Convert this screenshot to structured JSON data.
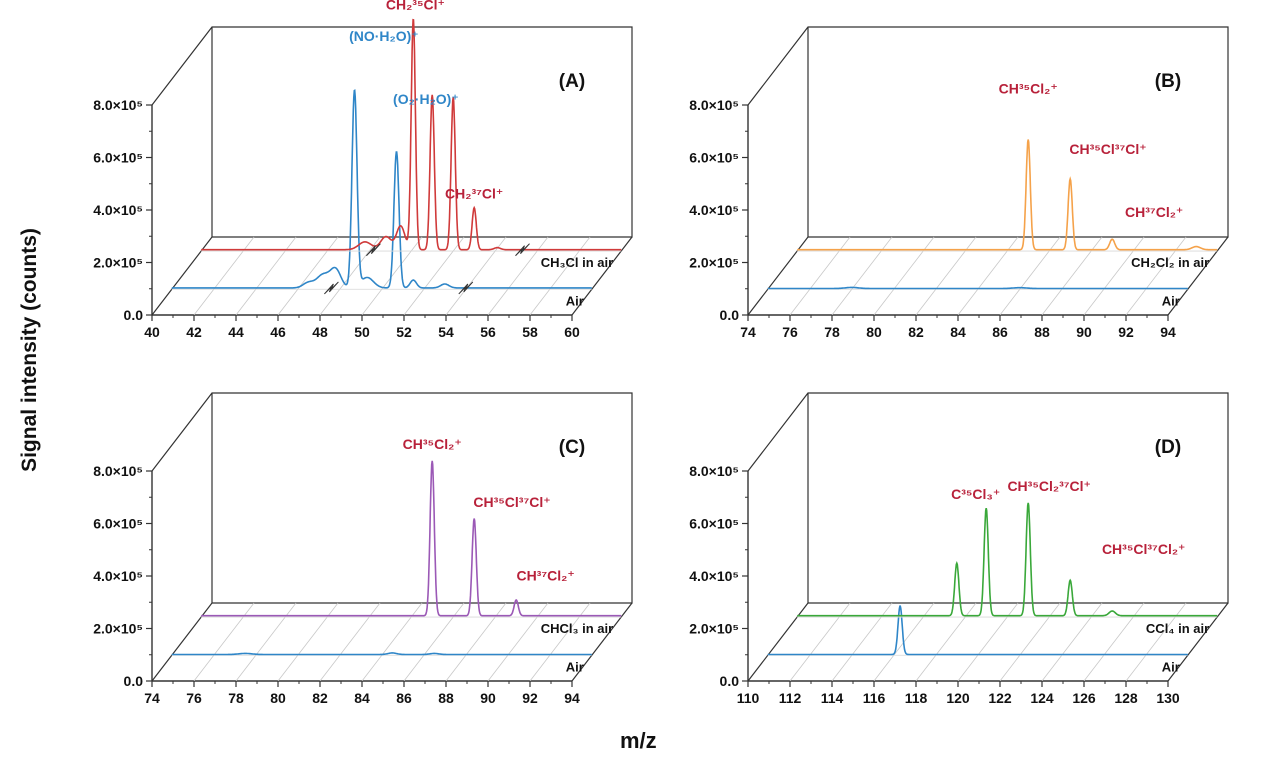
{
  "figure": {
    "y_axis_label": "Signal intensity (counts)",
    "x_axis_label": "m/z"
  },
  "chart_data": [
    {
      "type": "line",
      "panel_label": "(A)",
      "xlim": [
        40,
        60
      ],
      "x_ticks": [
        "40",
        "42",
        "44",
        "46",
        "48",
        "50",
        "52",
        "54",
        "56",
        "58",
        "60"
      ],
      "ylim": [
        0,
        800000
      ],
      "y_ticks": [
        "0.0",
        "2.0×10⁵",
        "4.0×10⁵",
        "6.0×10⁵",
        "8.0×10⁵"
      ],
      "series": [
        {
          "name": "Air",
          "color": "#2f86c8",
          "baseline": 5000,
          "peaks": [
            [
              46.5,
              20000,
              0.25
            ],
            [
              47.2,
              50000,
              0.3
            ],
            [
              47.8,
              70000,
              0.25
            ],
            [
              48.7,
              750000,
              0.12
            ],
            [
              49.3,
              40000,
              0.3
            ],
            [
              50.7,
              520000,
              0.12
            ],
            [
              51.5,
              30000,
              0.15
            ],
            [
              53.0,
              15000,
              0.2
            ]
          ],
          "cut_x": [
            47.6,
            54.0
          ]
        },
        {
          "name": "CH₃Cl in air",
          "color": "#d03a3a",
          "baseline": 5000,
          "peaks": [
            [
              47.8,
              30000,
              0.3
            ],
            [
              48.8,
              50000,
              0.25
            ],
            [
              49.5,
              90000,
              0.2
            ],
            [
              50.1,
              880000,
              0.1
            ],
            [
              51.0,
              590000,
              0.1
            ],
            [
              52.0,
              580000,
              0.1
            ],
            [
              53.0,
              160000,
              0.1
            ],
            [
              54.1,
              8000,
              0.15
            ]
          ],
          "cut_x": [
            48.2,
            55.3
          ]
        }
      ],
      "annotations": [
        {
          "text": "(NO·H₂O)⁺",
          "color": "#2f86c8",
          "x": 48.7,
          "y": 800000
        },
        {
          "text": "(O₂·H₂O)⁺",
          "color": "#2f86c8",
          "x": 50.7,
          "y": 560000
        },
        {
          "text": "CH₂³⁵Cl⁺",
          "color": "#b8213a",
          "x": 50.2,
          "y": 920000
        },
        {
          "text": "CH₂³⁷Cl⁺",
          "color": "#b8213a",
          "x": 53.0,
          "y": 200000
        }
      ]
    },
    {
      "type": "line",
      "panel_label": "(B)",
      "xlim": [
        74,
        94
      ],
      "x_ticks": [
        "74",
        "76",
        "78",
        "80",
        "82",
        "84",
        "86",
        "88",
        "90",
        "92",
        "94"
      ],
      "ylim": [
        0,
        800000
      ],
      "y_ticks": [
        "0.0",
        "2.0×10⁵",
        "4.0×10⁵",
        "6.0×10⁵",
        "8.0×10⁵"
      ],
      "series": [
        {
          "name": "Air",
          "color": "#2f86c8",
          "baseline": 3000,
          "peaks": [
            [
              78.0,
              4000,
              0.3
            ],
            [
              86.0,
              3000,
              0.3
            ]
          ]
        },
        {
          "name": "CH₂Cl₂ in air",
          "color": "#f5a24a",
          "baseline": 5000,
          "peaks": [
            [
              85.0,
              420000,
              0.1
            ],
            [
              87.0,
              270000,
              0.1
            ],
            [
              89.0,
              40000,
              0.12
            ],
            [
              93.0,
              12000,
              0.2
            ]
          ]
        }
      ],
      "annotations": [
        {
          "text": "CH³⁵Cl₂⁺",
          "color": "#b8213a",
          "x": 85.0,
          "y": 600000
        },
        {
          "text": "CH³⁵Cl³⁷Cl⁺",
          "color": "#b8213a",
          "x": 88.8,
          "y": 370000
        },
        {
          "text": "CH³⁷Cl₂⁺",
          "color": "#b8213a",
          "x": 91.0,
          "y": 130000
        }
      ]
    },
    {
      "type": "line",
      "panel_label": "(C)",
      "xlim": [
        74,
        94
      ],
      "x_ticks": [
        "74",
        "76",
        "78",
        "80",
        "82",
        "84",
        "86",
        "88",
        "90",
        "92",
        "94"
      ],
      "ylim": [
        0,
        800000
      ],
      "y_ticks": [
        "0.0",
        "2.0×10⁵",
        "4.0×10⁵",
        "6.0×10⁵",
        "8.0×10⁵"
      ],
      "series": [
        {
          "name": "Air",
          "color": "#2f86c8",
          "baseline": 3000,
          "peaks": [
            [
              77.5,
              4000,
              0.3
            ],
            [
              84.5,
              6000,
              0.2
            ],
            [
              86.5,
              4000,
              0.2
            ]
          ]
        },
        {
          "name": "CHCl₃ in air",
          "color": "#9b59b6",
          "baseline": 5000,
          "peaks": [
            [
              85.0,
              590000,
              0.1
            ],
            [
              87.0,
              370000,
              0.1
            ],
            [
              89.0,
              60000,
              0.1
            ]
          ]
        }
      ],
      "annotations": [
        {
          "text": "CH³⁵Cl₂⁺",
          "color": "#b8213a",
          "x": 85.0,
          "y": 640000
        },
        {
          "text": "CH³⁵Cl³⁷Cl⁺",
          "color": "#b8213a",
          "x": 88.8,
          "y": 420000
        },
        {
          "text": "CH³⁷Cl₂⁺",
          "color": "#b8213a",
          "x": 90.4,
          "y": 140000
        }
      ]
    },
    {
      "type": "line",
      "panel_label": "(D)",
      "xlim": [
        110,
        130
      ],
      "x_ticks": [
        "110",
        "112",
        "114",
        "116",
        "118",
        "120",
        "122",
        "124",
        "126",
        "128",
        "130"
      ],
      "ylim": [
        0,
        800000
      ],
      "y_ticks": [
        "0.0",
        "2.0×10⁵",
        "4.0×10⁵",
        "6.0×10⁵",
        "8.0×10⁵"
      ],
      "series": [
        {
          "name": "Air",
          "color": "#2f86c8",
          "baseline": 3000,
          "peaks": [
            [
              116.3,
              185000,
              0.1
            ]
          ]
        },
        {
          "name": "CCl₄ in air",
          "color": "#3aa83a",
          "baseline": 5000,
          "peaks": [
            [
              117.6,
              200000,
              0.1
            ],
            [
              119.0,
              410000,
              0.1
            ],
            [
              121.0,
              430000,
              0.1
            ],
            [
              123.0,
              135000,
              0.1
            ],
            [
              125.0,
              18000,
              0.15
            ]
          ]
        }
      ],
      "annotations": [
        {
          "text": "C³⁵Cl₃⁺",
          "color": "#b8213a",
          "x": 118.5,
          "y": 450000
        },
        {
          "text": "CH³⁵Cl₂³⁷Cl⁺",
          "color": "#b8213a",
          "x": 122.0,
          "y": 480000
        },
        {
          "text": "CH³⁵Cl³⁷Cl₂⁺",
          "color": "#b8213a",
          "x": 126.5,
          "y": 240000
        }
      ]
    }
  ]
}
